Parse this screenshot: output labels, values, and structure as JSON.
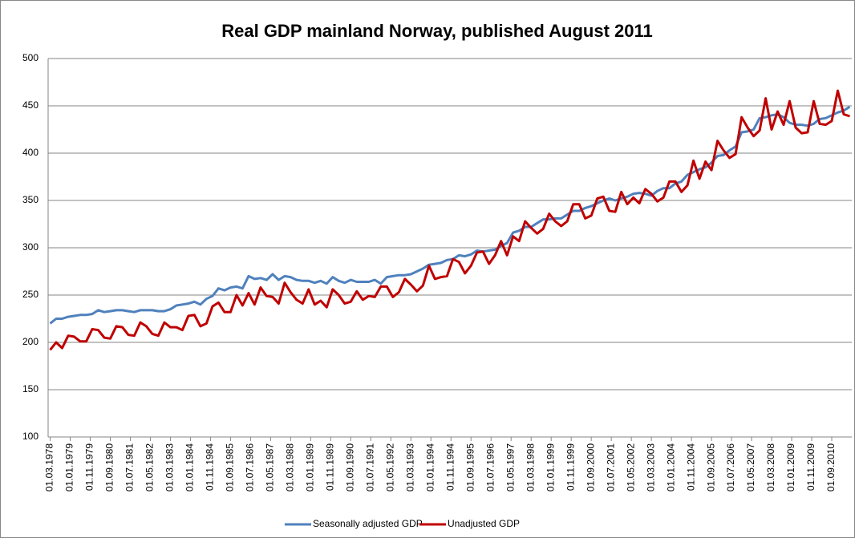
{
  "chart_data": {
    "type": "line",
    "title": "Real GDP mainland Norway, published August 2011",
    "x": [
      "01.03.1978",
      "01.06.1978",
      "01.09.1978",
      "01.12.1978",
      "01.03.1979",
      "01.06.1979",
      "01.09.1979",
      "01.12.1979",
      "01.03.1980",
      "01.06.1980",
      "01.09.1980",
      "01.12.1980",
      "01.03.1981",
      "01.06.1981",
      "01.09.1981",
      "01.12.1981",
      "01.03.1982",
      "01.06.1982",
      "01.09.1982",
      "01.12.1982",
      "01.03.1983",
      "01.06.1983",
      "01.09.1983",
      "01.12.1983",
      "01.03.1984",
      "01.06.1984",
      "01.09.1984",
      "01.12.1984",
      "01.03.1985",
      "01.06.1985",
      "01.09.1985",
      "01.12.1985",
      "01.03.1986",
      "01.06.1986",
      "01.09.1986",
      "01.12.1986",
      "01.03.1987",
      "01.06.1987",
      "01.09.1987",
      "01.12.1987",
      "01.03.1988",
      "01.06.1988",
      "01.09.1988",
      "01.12.1988",
      "01.03.1989",
      "01.06.1989",
      "01.09.1989",
      "01.12.1989",
      "01.03.1990",
      "01.06.1990",
      "01.09.1990",
      "01.12.1990",
      "01.03.1991",
      "01.06.1991",
      "01.09.1991",
      "01.12.1991",
      "01.03.1992",
      "01.06.1992",
      "01.09.1992",
      "01.12.1992",
      "01.03.1993",
      "01.06.1993",
      "01.09.1993",
      "01.12.1993",
      "01.03.1994",
      "01.06.1994",
      "01.09.1994",
      "01.12.1994",
      "01.03.1995",
      "01.06.1995",
      "01.09.1995",
      "01.12.1995",
      "01.03.1996",
      "01.06.1996",
      "01.09.1996",
      "01.12.1996",
      "01.03.1997",
      "01.06.1997",
      "01.09.1997",
      "01.12.1997",
      "01.03.1998",
      "01.06.1998",
      "01.09.1998",
      "01.12.1998",
      "01.03.1999",
      "01.06.1999",
      "01.09.1999",
      "01.12.1999",
      "01.03.2000",
      "01.06.2000",
      "01.09.2000",
      "01.12.2000",
      "01.03.2001",
      "01.06.2001",
      "01.09.2001",
      "01.12.2001",
      "01.03.2002",
      "01.06.2002",
      "01.09.2002",
      "01.12.2002",
      "01.03.2003",
      "01.06.2003",
      "01.09.2003",
      "01.12.2003",
      "01.03.2004",
      "01.06.2004",
      "01.09.2004",
      "01.12.2004",
      "01.03.2005",
      "01.06.2005",
      "01.09.2005",
      "01.12.2005",
      "01.03.2006",
      "01.06.2006",
      "01.09.2006",
      "01.12.2006",
      "01.03.2007",
      "01.06.2007",
      "01.09.2007",
      "01.12.2007",
      "01.03.2008",
      "01.06.2008",
      "01.09.2008",
      "01.12.2008",
      "01.03.2009",
      "01.06.2009",
      "01.09.2009",
      "01.12.2009",
      "01.03.2010",
      "01.06.2010",
      "01.09.2010",
      "01.12.2010",
      "01.03.2011",
      "01.06.2011"
    ],
    "series": [
      {
        "name": "Seasonally adjusted GDP",
        "color": "#4f81bd",
        "values": [
          220,
          225,
          225,
          227,
          228,
          229,
          229,
          230,
          234,
          232,
          233,
          234,
          234,
          233,
          232,
          234,
          234,
          234,
          233,
          233,
          235,
          239,
          240,
          241,
          243,
          240,
          246,
          249,
          257,
          255,
          258,
          259,
          257,
          270,
          267,
          268,
          266,
          272,
          266,
          270,
          269,
          266,
          265,
          265,
          263,
          265,
          262,
          269,
          265,
          263,
          266,
          264,
          264,
          264,
          266,
          262,
          269,
          270,
          271,
          271,
          272,
          275,
          278,
          282,
          283,
          284,
          287,
          288,
          292,
          291,
          293,
          297,
          296,
          297,
          298,
          302,
          305,
          316,
          318,
          322,
          322,
          326,
          330,
          330,
          331,
          331,
          335,
          339,
          339,
          342,
          344,
          347,
          350,
          352,
          350,
          352,
          354,
          357,
          358,
          357,
          355,
          360,
          363,
          363,
          368,
          370,
          377,
          380,
          383,
          385,
          390,
          397,
          398,
          403,
          407,
          422,
          423,
          425,
          437,
          438,
          440,
          441,
          438,
          432,
          430,
          430,
          429,
          431,
          436,
          437,
          440,
          443,
          445,
          449
        ]
      },
      {
        "name": "Unadjusted GDP",
        "color": "#c00000",
        "values": [
          192,
          200,
          194,
          207,
          206,
          201,
          201,
          214,
          213,
          205,
          204,
          217,
          216,
          208,
          207,
          221,
          217,
          209,
          207,
          221,
          216,
          216,
          213,
          228,
          229,
          217,
          220,
          238,
          242,
          232,
          232,
          250,
          239,
          252,
          240,
          258,
          249,
          248,
          241,
          263,
          253,
          245,
          241,
          256,
          240,
          244,
          237,
          256,
          250,
          241,
          243,
          254,
          245,
          249,
          248,
          259,
          259,
          248,
          253,
          267,
          261,
          254,
          260,
          281,
          267,
          269,
          270,
          288,
          285,
          273,
          281,
          295,
          296,
          283,
          292,
          307,
          292,
          312,
          307,
          328,
          321,
          315,
          320,
          336,
          328,
          323,
          328,
          346,
          346,
          331,
          334,
          352,
          354,
          339,
          338,
          359,
          346,
          353,
          347,
          362,
          357,
          349,
          353,
          370,
          370,
          359,
          366,
          392,
          373,
          391,
          382,
          413,
          403,
          395,
          399,
          438,
          427,
          418,
          424,
          458,
          425,
          444,
          430,
          455,
          427,
          421,
          422,
          455,
          431,
          430,
          434,
          466,
          441,
          439
        ]
      }
    ],
    "xticks": [
      "01.03.1978",
      "01.01.1979",
      "01.11.1979",
      "01.09.1980",
      "01.07.1981",
      "01.05.1982",
      "01.03.1983",
      "01.01.1984",
      "01.11.1984",
      "01.09.1985",
      "01.07.1986",
      "01.05.1987",
      "01.03.1988",
      "01.01.1989",
      "01.11.1989",
      "01.09.1990",
      "01.07.1991",
      "01.05.1992",
      "01.03.1993",
      "01.01.1994",
      "01.11.1994",
      "01.09.1995",
      "01.07.1996",
      "01.05.1997",
      "01.03.1998",
      "01.01.1999",
      "01.11.1999",
      "01.09.2000",
      "01.07.2001",
      "01.05.2002",
      "01.03.2003",
      "01.01.2004",
      "01.11.2004",
      "01.09.2005",
      "01.07.2006",
      "01.05.2007",
      "01.03.2008",
      "01.01.2009",
      "01.11.2009",
      "01.09.2010"
    ],
    "ylim": [
      100,
      500
    ],
    "yticks": [
      100,
      150,
      200,
      250,
      300,
      350,
      400,
      450,
      500
    ],
    "grid": true,
    "legend": "bottom"
  }
}
